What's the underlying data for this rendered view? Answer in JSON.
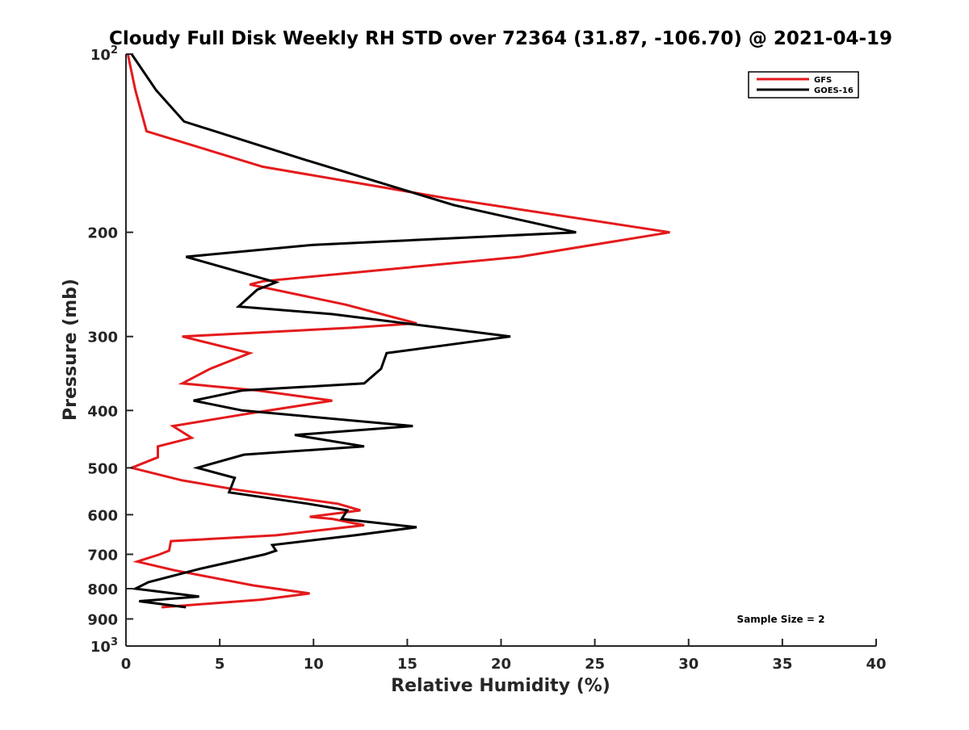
{
  "chart_data": {
    "type": "line",
    "title": "Cloudy Full Disk Weekly RH STD over 72364 (31.87, -106.70) @ 2021-04-19",
    "xlabel": "Relative Humidity (%)",
    "ylabel": "Pressure (mb)",
    "xlim": [
      0,
      40
    ],
    "ylim": [
      100,
      1000
    ],
    "y_scale": "log",
    "y_reversed": true,
    "grid": false,
    "legend_position": "top-right",
    "x_ticks": [
      "0",
      "5",
      "10",
      "15",
      "20",
      "25",
      "30",
      "35",
      "40"
    ],
    "y_ticks": [
      {
        "value": 100,
        "base": "10",
        "exp": "2"
      },
      {
        "value": 200,
        "base": "200",
        "exp": ""
      },
      {
        "value": 300,
        "base": "300",
        "exp": ""
      },
      {
        "value": 400,
        "base": "400",
        "exp": ""
      },
      {
        "value": 500,
        "base": "500",
        "exp": ""
      },
      {
        "value": 600,
        "base": "600",
        "exp": ""
      },
      {
        "value": 700,
        "base": "700",
        "exp": ""
      },
      {
        "value": 800,
        "base": "800",
        "exp": ""
      },
      {
        "value": 900,
        "base": "900",
        "exp": ""
      },
      {
        "value": 1000,
        "base": "10",
        "exp": "3"
      }
    ],
    "annotation": "Sample Size = 2",
    "series": [
      {
        "name": "GFS",
        "color": "#e41a1c",
        "points": [
          [
            0.1,
            100
          ],
          [
            0.5,
            115
          ],
          [
            1.1,
            135
          ],
          [
            7.3,
            155
          ],
          [
            17.0,
            175
          ],
          [
            29.0,
            200
          ],
          [
            21.0,
            220
          ],
          [
            7.3,
            242
          ],
          [
            6.6,
            245
          ],
          [
            11.7,
            265
          ],
          [
            15.5,
            285
          ],
          [
            12.0,
            290
          ],
          [
            3.0,
            300
          ],
          [
            6.6,
            320
          ],
          [
            4.5,
            340
          ],
          [
            3.0,
            360
          ],
          [
            7.0,
            370
          ],
          [
            11.0,
            385
          ],
          [
            6.5,
            405
          ],
          [
            2.5,
            425
          ],
          [
            3.5,
            445
          ],
          [
            1.7,
            460
          ],
          [
            1.7,
            480
          ],
          [
            0.3,
            500
          ],
          [
            3.0,
            525
          ],
          [
            6.0,
            545
          ],
          [
            11.3,
            575
          ],
          [
            12.5,
            590
          ],
          [
            9.8,
            605
          ],
          [
            11.0,
            610
          ],
          [
            12.7,
            625
          ],
          [
            8.0,
            650
          ],
          [
            2.4,
            665
          ],
          [
            2.3,
            690
          ],
          [
            1.8,
            700
          ],
          [
            0.6,
            720
          ],
          [
            2.6,
            745
          ],
          [
            6.8,
            790
          ],
          [
            9.8,
            815
          ],
          [
            7.2,
            835
          ],
          [
            1.9,
            860
          ]
        ]
      },
      {
        "name": "GOES-16",
        "color": "#000000",
        "points": [
          [
            0.3,
            100
          ],
          [
            1.6,
            115
          ],
          [
            3.1,
            130
          ],
          [
            9.3,
            150
          ],
          [
            17.5,
            180
          ],
          [
            24.0,
            200
          ],
          [
            10.0,
            210
          ],
          [
            3.2,
            220
          ],
          [
            8.0,
            243
          ],
          [
            7.0,
            250
          ],
          [
            6.0,
            267
          ],
          [
            11.0,
            275
          ],
          [
            20.5,
            300
          ],
          [
            13.9,
            320
          ],
          [
            13.6,
            340
          ],
          [
            12.7,
            360
          ],
          [
            6.2,
            370
          ],
          [
            3.6,
            385
          ],
          [
            6.2,
            400
          ],
          [
            15.3,
            425
          ],
          [
            9.0,
            440
          ],
          [
            12.7,
            460
          ],
          [
            6.3,
            475
          ],
          [
            3.8,
            500
          ],
          [
            5.8,
            520
          ],
          [
            5.5,
            550
          ],
          [
            9.7,
            575
          ],
          [
            11.8,
            590
          ],
          [
            11.5,
            610
          ],
          [
            15.5,
            630
          ],
          [
            12.2,
            650
          ],
          [
            7.8,
            675
          ],
          [
            8.0,
            690
          ],
          [
            7.4,
            700
          ],
          [
            4.0,
            740
          ],
          [
            1.2,
            780
          ],
          [
            0.5,
            800
          ],
          [
            3.9,
            825
          ],
          [
            0.7,
            840
          ],
          [
            3.2,
            860
          ]
        ]
      }
    ]
  }
}
